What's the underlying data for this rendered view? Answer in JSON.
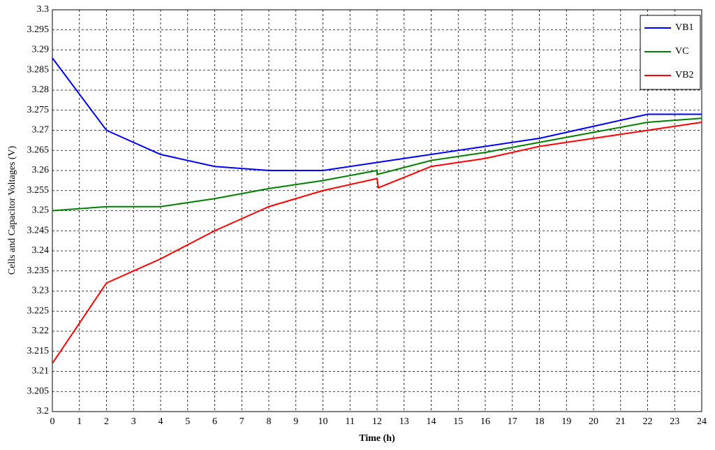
{
  "chart_data": {
    "type": "line",
    "xlabel": "Time (h)",
    "ylabel": "Cells and Capacitor Voltages (V)",
    "xlim": [
      0,
      24
    ],
    "xticks": [
      0,
      1,
      2,
      3,
      4,
      5,
      6,
      7,
      8,
      9,
      10,
      11,
      12,
      13,
      14,
      15,
      16,
      17,
      18,
      19,
      20,
      21,
      22,
      23,
      24
    ],
    "ylim": [
      3.2,
      3.3
    ],
    "yticks": [
      3.2,
      3.205,
      3.21,
      3.215,
      3.22,
      3.225,
      3.23,
      3.235,
      3.24,
      3.245,
      3.25,
      3.255,
      3.26,
      3.265,
      3.27,
      3.275,
      3.28,
      3.285,
      3.29,
      3.295,
      3.3
    ],
    "grid": true,
    "legend": "upper right",
    "series": [
      {
        "name": "VB1",
        "color": "#0000ff",
        "x": [
          0,
          2,
          4,
          6,
          8,
          10,
          12,
          14,
          16,
          18,
          20,
          22,
          24
        ],
        "values": [
          3.288,
          3.27,
          3.264,
          3.261,
          3.26,
          3.26,
          3.262,
          3.264,
          3.266,
          3.268,
          3.271,
          3.274,
          3.274
        ]
      },
      {
        "name": "VC",
        "color": "#008000",
        "x": [
          0,
          2,
          4,
          6,
          8,
          10,
          12,
          12,
          14,
          16,
          18,
          20,
          22,
          24
        ],
        "values": [
          3.25,
          3.251,
          3.251,
          3.253,
          3.2555,
          3.2575,
          3.26,
          3.259,
          3.2625,
          3.2645,
          3.267,
          3.2695,
          3.272,
          3.273
        ]
      },
      {
        "name": "VB2",
        "color": "#ff0000",
        "x": [
          0,
          2,
          4,
          6,
          8,
          10,
          12,
          12.05,
          14,
          16,
          18,
          20,
          22,
          24
        ],
        "values": [
          3.212,
          3.232,
          3.238,
          3.245,
          3.251,
          3.255,
          3.258,
          3.2557,
          3.261,
          3.263,
          3.266,
          3.268,
          3.27,
          3.272
        ]
      }
    ]
  }
}
